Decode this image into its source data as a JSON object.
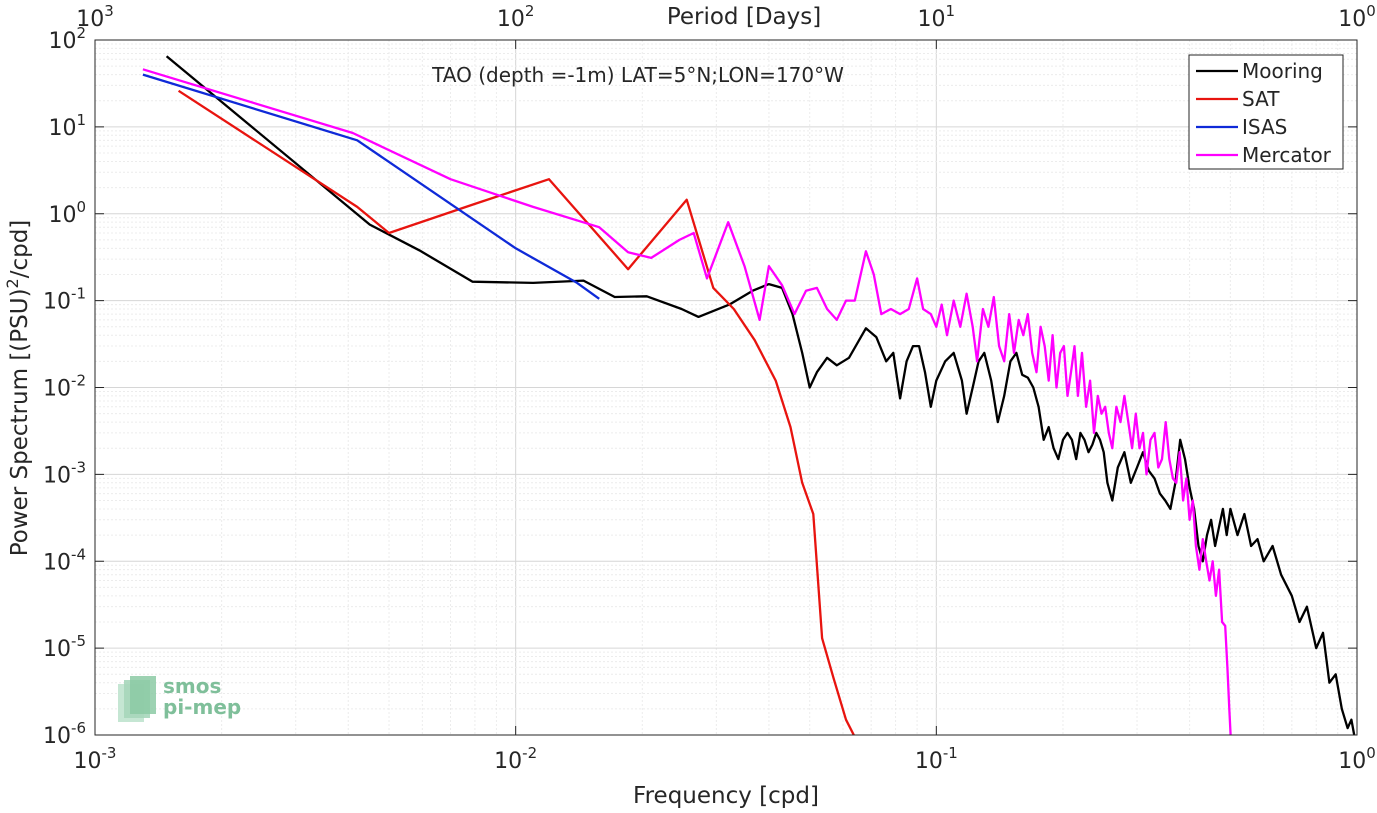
{
  "chart_data": {
    "type": "line",
    "title": "TAO (depth =-1m) LAT=5°N;LON=170°W",
    "xlabel": "Frequency [cpd]",
    "ylabel_base": "Power Spectrum [(PSU)",
    "ylabel_sup": "2",
    "ylabel_tail": "/cpd]",
    "top_xlabel": "Period [Days]",
    "x_scale": "log",
    "y_scale": "log",
    "xlim": [
      0.001,
      1
    ],
    "ylim": [
      1e-06,
      100
    ],
    "grid": true,
    "legend_position": "top-right",
    "x_ticks": [
      {
        "value": 0.001,
        "base": "10",
        "exp": "-3"
      },
      {
        "value": 0.01,
        "base": "10",
        "exp": "-2"
      },
      {
        "value": 0.1,
        "base": "10",
        "exp": "-1"
      },
      {
        "value": 1,
        "base": "10",
        "exp": "0"
      }
    ],
    "y_ticks": [
      {
        "value": 1e-06,
        "base": "10",
        "exp": "-6"
      },
      {
        "value": 1e-05,
        "base": "10",
        "exp": "-5"
      },
      {
        "value": 0.0001,
        "base": "10",
        "exp": "-4"
      },
      {
        "value": 0.001,
        "base": "10",
        "exp": "-3"
      },
      {
        "value": 0.01,
        "base": "10",
        "exp": "-2"
      },
      {
        "value": 0.1,
        "base": "10",
        "exp": "-1"
      },
      {
        "value": 1,
        "base": "10",
        "exp": "0"
      },
      {
        "value": 10,
        "base": "10",
        "exp": "1"
      },
      {
        "value": 100,
        "base": "10",
        "exp": "2"
      }
    ],
    "top_ticks": [
      {
        "period": 1000,
        "base": "10",
        "exp": "3"
      },
      {
        "period": 100,
        "base": "10",
        "exp": "2"
      },
      {
        "period": 10,
        "base": "10",
        "exp": "1"
      },
      {
        "period": 1,
        "base": "10",
        "exp": "0"
      }
    ],
    "series": [
      {
        "name": "Mooring",
        "color": "#000000",
        "points": [
          [
            0.00148,
            65
          ],
          [
            0.0045,
            0.75
          ],
          [
            0.0059,
            0.38
          ],
          [
            0.0079,
            0.165
          ],
          [
            0.011,
            0.16
          ],
          [
            0.0145,
            0.17
          ],
          [
            0.0172,
            0.11
          ],
          [
            0.0205,
            0.112
          ],
          [
            0.0248,
            0.08
          ],
          [
            0.0272,
            0.065
          ],
          [
            0.0322,
            0.09
          ],
          [
            0.0366,
            0.13
          ],
          [
            0.04,
            0.155
          ],
          [
            0.043,
            0.14
          ],
          [
            0.0455,
            0.07
          ],
          [
            0.048,
            0.025
          ],
          [
            0.05,
            0.01
          ],
          [
            0.052,
            0.015
          ],
          [
            0.055,
            0.022
          ],
          [
            0.058,
            0.018
          ],
          [
            0.062,
            0.022
          ],
          [
            0.068,
            0.048
          ],
          [
            0.072,
            0.038
          ],
          [
            0.076,
            0.02
          ],
          [
            0.079,
            0.025
          ],
          [
            0.082,
            0.0075
          ],
          [
            0.085,
            0.02
          ],
          [
            0.088,
            0.03
          ],
          [
            0.091,
            0.03
          ],
          [
            0.094,
            0.015
          ],
          [
            0.097,
            0.006
          ],
          [
            0.1,
            0.012
          ],
          [
            0.105,
            0.02
          ],
          [
            0.11,
            0.025
          ],
          [
            0.115,
            0.012
          ],
          [
            0.118,
            0.005
          ],
          [
            0.122,
            0.01
          ],
          [
            0.126,
            0.02
          ],
          [
            0.13,
            0.025
          ],
          [
            0.135,
            0.012
          ],
          [
            0.14,
            0.004
          ],
          [
            0.145,
            0.008
          ],
          [
            0.15,
            0.02
          ],
          [
            0.155,
            0.025
          ],
          [
            0.16,
            0.014
          ],
          [
            0.165,
            0.013
          ],
          [
            0.17,
            0.01
          ],
          [
            0.175,
            0.006
          ],
          [
            0.18,
            0.0025
          ],
          [
            0.185,
            0.0035
          ],
          [
            0.19,
            0.002
          ],
          [
            0.195,
            0.0015
          ],
          [
            0.2,
            0.0025
          ],
          [
            0.205,
            0.003
          ],
          [
            0.21,
            0.0025
          ],
          [
            0.215,
            0.0015
          ],
          [
            0.22,
            0.003
          ],
          [
            0.225,
            0.0025
          ],
          [
            0.23,
            0.0018
          ],
          [
            0.235,
            0.0022
          ],
          [
            0.24,
            0.003
          ],
          [
            0.245,
            0.0025
          ],
          [
            0.25,
            0.0018
          ],
          [
            0.255,
            0.0008
          ],
          [
            0.262,
            0.0005
          ],
          [
            0.27,
            0.0012
          ],
          [
            0.28,
            0.0018
          ],
          [
            0.29,
            0.0008
          ],
          [
            0.3,
            0.0012
          ],
          [
            0.31,
            0.0018
          ],
          [
            0.32,
            0.0011
          ],
          [
            0.33,
            0.0009
          ],
          [
            0.34,
            0.0006
          ],
          [
            0.35,
            0.0005
          ],
          [
            0.36,
            0.0004
          ],
          [
            0.37,
            0.0008
          ],
          [
            0.38,
            0.0025
          ],
          [
            0.39,
            0.0015
          ],
          [
            0.4,
            0.0007
          ],
          [
            0.41,
            0.0004
          ],
          [
            0.42,
            0.00015
          ],
          [
            0.43,
            0.0001
          ],
          [
            0.44,
            0.0002
          ],
          [
            0.45,
            0.0003
          ],
          [
            0.46,
            0.00015
          ],
          [
            0.47,
            0.00025
          ],
          [
            0.48,
            0.0004
          ],
          [
            0.49,
            0.0002
          ],
          [
            0.5,
            0.0004
          ],
          [
            0.52,
            0.0002
          ],
          [
            0.54,
            0.00035
          ],
          [
            0.56,
            0.00015
          ],
          [
            0.58,
            0.00018
          ],
          [
            0.6,
            0.0001
          ],
          [
            0.63,
            0.00015
          ],
          [
            0.66,
            7e-05
          ],
          [
            0.7,
            4e-05
          ],
          [
            0.73,
            2e-05
          ],
          [
            0.76,
            3e-05
          ],
          [
            0.8,
            1e-05
          ],
          [
            0.83,
            1.5e-05
          ],
          [
            0.86,
            4e-06
          ],
          [
            0.89,
            5e-06
          ],
          [
            0.92,
            2e-06
          ],
          [
            0.95,
            1.2e-06
          ],
          [
            0.97,
            1.5e-06
          ],
          [
            0.985,
            1e-06
          ]
        ]
      },
      {
        "name": "SAT",
        "color": "#e8140f",
        "points": [
          [
            0.00158,
            26
          ],
          [
            0.0042,
            1.2
          ],
          [
            0.005,
            0.6
          ],
          [
            0.008,
            1.3
          ],
          [
            0.012,
            2.5
          ],
          [
            0.0185,
            0.23
          ],
          [
            0.0255,
            1.45
          ],
          [
            0.0295,
            0.14
          ],
          [
            0.033,
            0.08
          ],
          [
            0.037,
            0.035
          ],
          [
            0.0415,
            0.012
          ],
          [
            0.045,
            0.0035
          ],
          [
            0.048,
            0.0008
          ],
          [
            0.051,
            0.00035
          ],
          [
            0.0535,
            1.3e-05
          ],
          [
            0.057,
            4.5e-06
          ],
          [
            0.061,
            1.5e-06
          ],
          [
            0.064,
            8e-07
          ]
        ]
      },
      {
        "name": "ISAS",
        "color": "#0f2ad8",
        "points": [
          [
            0.0013,
            40
          ],
          [
            0.0042,
            7
          ],
          [
            0.01,
            0.4
          ],
          [
            0.014,
            0.16
          ],
          [
            0.0158,
            0.105
          ]
        ]
      },
      {
        "name": "Mercator",
        "color": "#ff00ff",
        "points": [
          [
            0.0013,
            46
          ],
          [
            0.0041,
            8.5
          ],
          [
            0.007,
            2.5
          ],
          [
            0.011,
            1.2
          ],
          [
            0.0158,
            0.7
          ],
          [
            0.0185,
            0.36
          ],
          [
            0.021,
            0.31
          ],
          [
            0.0245,
            0.5
          ],
          [
            0.0265,
            0.6
          ],
          [
            0.0285,
            0.18
          ],
          [
            0.032,
            0.8
          ],
          [
            0.035,
            0.25
          ],
          [
            0.038,
            0.06
          ],
          [
            0.04,
            0.25
          ],
          [
            0.043,
            0.15
          ],
          [
            0.046,
            0.07
          ],
          [
            0.049,
            0.13
          ],
          [
            0.052,
            0.14
          ],
          [
            0.055,
            0.08
          ],
          [
            0.058,
            0.06
          ],
          [
            0.061,
            0.1
          ],
          [
            0.064,
            0.1
          ],
          [
            0.068,
            0.37
          ],
          [
            0.071,
            0.2
          ],
          [
            0.074,
            0.07
          ],
          [
            0.078,
            0.08
          ],
          [
            0.082,
            0.07
          ],
          [
            0.086,
            0.08
          ],
          [
            0.09,
            0.18
          ],
          [
            0.093,
            0.08
          ],
          [
            0.097,
            0.07
          ],
          [
            0.1,
            0.05
          ],
          [
            0.103,
            0.09
          ],
          [
            0.106,
            0.04
          ],
          [
            0.11,
            0.1
          ],
          [
            0.114,
            0.05
          ],
          [
            0.118,
            0.12
          ],
          [
            0.122,
            0.05
          ],
          [
            0.125,
            0.02
          ],
          [
            0.129,
            0.08
          ],
          [
            0.133,
            0.05
          ],
          [
            0.137,
            0.11
          ],
          [
            0.141,
            0.03
          ],
          [
            0.145,
            0.02
          ],
          [
            0.149,
            0.07
          ],
          [
            0.153,
            0.025
          ],
          [
            0.157,
            0.06
          ],
          [
            0.161,
            0.04
          ],
          [
            0.165,
            0.07
          ],
          [
            0.169,
            0.025
          ],
          [
            0.173,
            0.015
          ],
          [
            0.177,
            0.05
          ],
          [
            0.181,
            0.03
          ],
          [
            0.185,
            0.012
          ],
          [
            0.189,
            0.04
          ],
          [
            0.193,
            0.01
          ],
          [
            0.197,
            0.025
          ],
          [
            0.201,
            0.03
          ],
          [
            0.205,
            0.008
          ],
          [
            0.209,
            0.015
          ],
          [
            0.213,
            0.03
          ],
          [
            0.217,
            0.008
          ],
          [
            0.222,
            0.025
          ],
          [
            0.227,
            0.006
          ],
          [
            0.232,
            0.012
          ],
          [
            0.237,
            0.003
          ],
          [
            0.242,
            0.008
          ],
          [
            0.247,
            0.005
          ],
          [
            0.252,
            0.006
          ],
          [
            0.257,
            0.003
          ],
          [
            0.262,
            0.002
          ],
          [
            0.268,
            0.006
          ],
          [
            0.274,
            0.004
          ],
          [
            0.28,
            0.008
          ],
          [
            0.286,
            0.004
          ],
          [
            0.292,
            0.002
          ],
          [
            0.298,
            0.005
          ],
          [
            0.304,
            0.002
          ],
          [
            0.31,
            0.003
          ],
          [
            0.316,
            0.001
          ],
          [
            0.323,
            0.0025
          ],
          [
            0.33,
            0.003
          ],
          [
            0.337,
            0.0012
          ],
          [
            0.344,
            0.0015
          ],
          [
            0.351,
            0.004
          ],
          [
            0.358,
            0.0015
          ],
          [
            0.365,
            0.0009
          ],
          [
            0.372,
            0.0008
          ],
          [
            0.379,
            0.0018
          ],
          [
            0.386,
            0.0005
          ],
          [
            0.393,
            0.0009
          ],
          [
            0.4,
            0.0003
          ],
          [
            0.407,
            0.0005
          ],
          [
            0.414,
            0.00015
          ],
          [
            0.422,
            8e-05
          ],
          [
            0.43,
            0.00018
          ],
          [
            0.438,
            0.0001
          ],
          [
            0.446,
            6e-05
          ],
          [
            0.454,
            0.0001
          ],
          [
            0.462,
            4e-05
          ],
          [
            0.47,
            8e-05
          ],
          [
            0.478,
            2e-05
          ],
          [
            0.486,
            1.8e-05
          ],
          [
            0.492,
            6e-06
          ],
          [
            0.497,
            2e-06
          ],
          [
            0.501,
            8e-07
          ]
        ]
      }
    ]
  },
  "logo": {
    "line1": "smos",
    "line2": "pi-mep"
  }
}
